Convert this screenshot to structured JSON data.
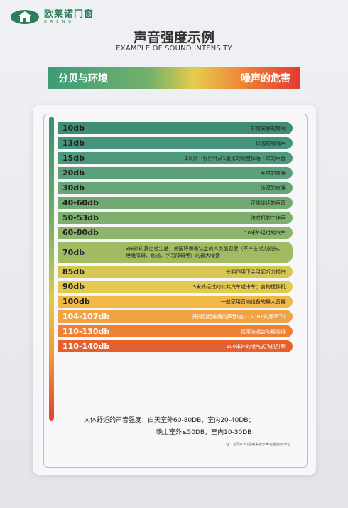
{
  "brand": {
    "name_cn": "欧莱诺门窗",
    "name_en": "OREND",
    "color": "#2a7e5a"
  },
  "title": "声音强度示例",
  "subtitle": "EXAMPLE OF SOUND INTENSITY",
  "header": {
    "left": "分贝与环境",
    "right": "噪声的危害"
  },
  "rows": [
    {
      "level": "10db",
      "desc": "非常安静的房间",
      "color": "#3f8e74"
    },
    {
      "level": "13db",
      "desc": "灯泡的嗡嗡声",
      "color": "#44937a"
    },
    {
      "level": "15db",
      "desc": "1米外一根别针从1厘米的高度掉落下来的声音",
      "color": "#4d9a7a"
    },
    {
      "level": "20db",
      "desc": "乡村的夜晚",
      "color": "#5aa07a"
    },
    {
      "level": "30db",
      "desc": "沙漠的夜晚",
      "color": "#65a577"
    },
    {
      "level": "40-60db",
      "desc": "正常谈话的声音",
      "color": "#72aa72"
    },
    {
      "level": "50-53db",
      "desc": "洗衣机的工作声",
      "color": "#7faf6e"
    },
    {
      "level": "60-80db",
      "desc": "10米外经过的汽车",
      "color": "#8cb46a"
    },
    {
      "level": "70db",
      "desc": "3米外的真空吸尘器；美国环保署认定的人类能忍受（不产生听力损失、睡眠障碍、焦虑、学习障碍等）的最大噪音",
      "color": "#a2bb63"
    },
    {
      "level": "85db",
      "desc": "长期作用下会引起听力损伤",
      "color": "#d5c751"
    },
    {
      "level": "90db",
      "desc": "3米外经过的公共汽车或卡车；食物搅拌机",
      "color": "#e3c94d"
    },
    {
      "level": "100db",
      "desc": "一般家用音响设备的最大音量",
      "color": "#f1b848"
    },
    {
      "level": "104-107db",
      "desc": "开始引起疼痛的声音(在2750HZ的频率下)",
      "color": "#f0a244"
    },
    {
      "level": "110-130db",
      "desc": "摇滚演唱会的最前排",
      "color": "#ec8138"
    },
    {
      "level": "110-140db",
      "desc": "100米外的喷气式飞机引擎",
      "color": "#e5602f"
    }
  ],
  "comfort": {
    "line1": "人体舒适的声音强度：白天室外60-80DB，室内20-40DB；",
    "line2": "晚上室外≤50DB，室内10-30DB"
  },
  "note": "注：分贝(DB)是用来表示声音强度的单位"
}
